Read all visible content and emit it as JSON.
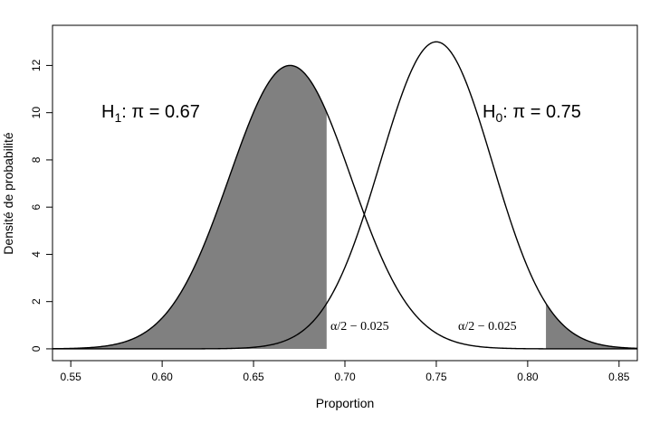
{
  "chart_data": {
    "type": "line",
    "title": "",
    "xlabel": "Proportion",
    "ylabel": "Densité de probabilité",
    "xlim": [
      0.54,
      0.86
    ],
    "ylim": [
      -0.5,
      13.7
    ],
    "xticks": [
      0.55,
      0.6,
      0.65,
      0.7,
      0.75,
      0.8,
      0.85
    ],
    "xtick_labels": [
      "0.55",
      "0.60",
      "0.65",
      "0.70",
      "0.75",
      "0.80",
      "0.85"
    ],
    "yticks": [
      0,
      2,
      4,
      6,
      8,
      10,
      12
    ],
    "ytick_labels": [
      "0",
      "2",
      "4",
      "6",
      "8",
      "10",
      "12"
    ],
    "grid": false,
    "series": [
      {
        "mean": 0.67,
        "peak": 12.0
      },
      {
        "mean": 0.75,
        "peak": 13.0
      }
    ],
    "shaded_regions": [
      {
        "curve": 0,
        "from": 0.54,
        "to": 0.69
      },
      {
        "curve": 1,
        "from": 0.81,
        "to": 0.86
      }
    ],
    "annotations": {
      "h1_sym": "H",
      "h1_sub": "1",
      "h1_rest": ":   π = 0.67",
      "h0_sym": "H",
      "h0_sub": "0",
      "h0_rest": ":   π = 0.75",
      "alpha_left": "α/2 − 0.025",
      "alpha_right": "α/2 − 0.025"
    },
    "colors": {
      "curve": "#000000",
      "shade": "#808080",
      "axis": "#000000"
    }
  }
}
